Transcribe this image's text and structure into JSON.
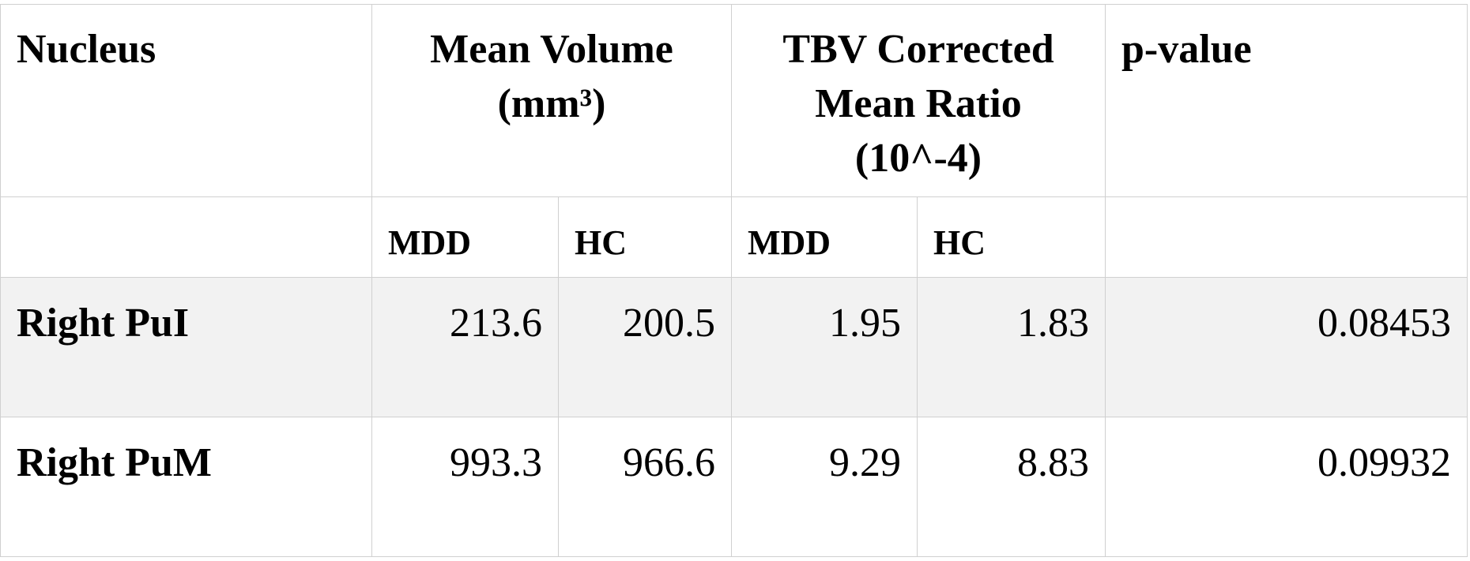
{
  "table": {
    "header": [
      [
        "Nucleus"
      ],
      [
        "Mean Volume",
        "(mm³)"
      ],
      [
        "TBV Corrected",
        "Mean Ratio",
        "(10^-4)"
      ],
      [
        "p-value"
      ]
    ],
    "subheader": [
      "MDD",
      "HC",
      "MDD",
      "HC"
    ],
    "rows": [
      [
        "Right PuI",
        "213.6",
        "200.5",
        "1.95",
        "1.83",
        "0.08453"
      ],
      [
        "Right PuM",
        "993.3",
        "966.6",
        "9.29",
        "8.83",
        "0.09932"
      ]
    ]
  }
}
